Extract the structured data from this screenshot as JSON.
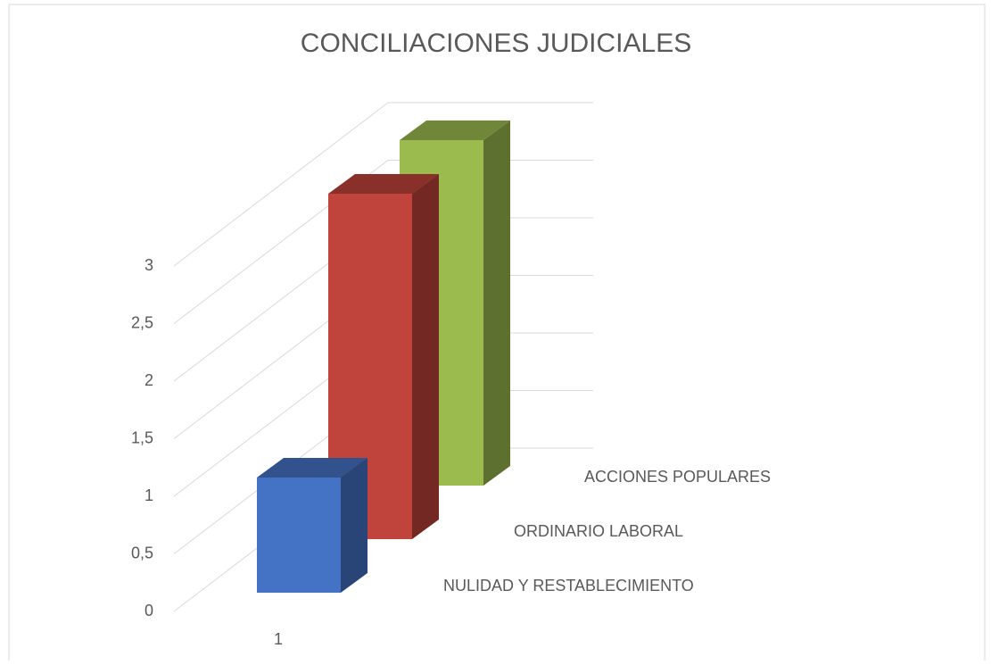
{
  "chart_data": {
    "type": "bar3d",
    "title": "CONCILIACIONES JUDICIALES",
    "categories": [
      "1"
    ],
    "series": [
      {
        "name": "NULIDAD Y RESTABLECIMIENTO",
        "color": "#4472c4",
        "values": [
          1
        ]
      },
      {
        "name": "ORDINARIO LABORAL",
        "color": "#c0433c",
        "values": [
          3
        ]
      },
      {
        "name": "ACCIONES POPULARES",
        "color": "#9bbb4f",
        "values": [
          3
        ]
      }
    ],
    "ylim": [
      0,
      3
    ],
    "yticks": [
      0,
      {
        "value": 0.5,
        "label": "0,5"
      },
      1,
      {
        "value": 1.5,
        "label": "1,5"
      },
      2,
      {
        "value": 2.5,
        "label": "2,5"
      },
      3
    ],
    "grid": true
  }
}
